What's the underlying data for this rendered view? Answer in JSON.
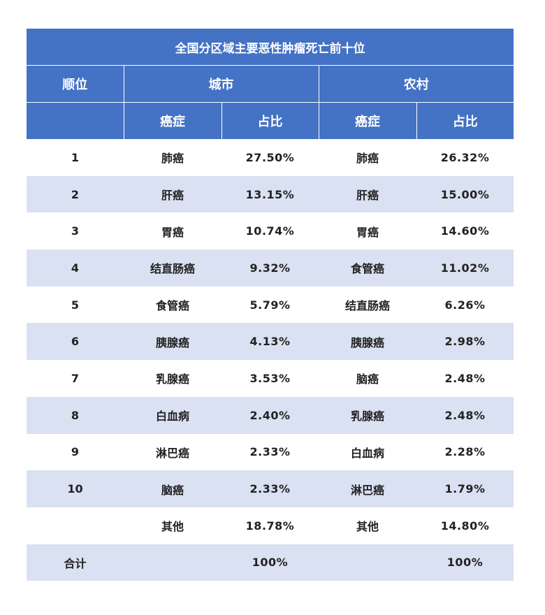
{
  "table": {
    "title": "全国分区域主要恶性肿瘤死亡前十位",
    "header": {
      "rank": "顺位",
      "city": "城市",
      "rural": "农村",
      "cancer": "癌症",
      "share": "占比"
    },
    "rows": [
      {
        "rank": "1",
        "city_cancer": "肺癌",
        "city_pct": "27.50%",
        "rural_cancer": "肺癌",
        "rural_pct": "26.32%"
      },
      {
        "rank": "2",
        "city_cancer": "肝癌",
        "city_pct": "13.15%",
        "rural_cancer": "肝癌",
        "rural_pct": "15.00%"
      },
      {
        "rank": "3",
        "city_cancer": "胃癌",
        "city_pct": "10.74%",
        "rural_cancer": "胃癌",
        "rural_pct": "14.60%"
      },
      {
        "rank": "4",
        "city_cancer": "结直肠癌",
        "city_pct": "9.32%",
        "rural_cancer": "食管癌",
        "rural_pct": "11.02%"
      },
      {
        "rank": "5",
        "city_cancer": "食管癌",
        "city_pct": "5.79%",
        "rural_cancer": "结直肠癌",
        "rural_pct": "6.26%"
      },
      {
        "rank": "6",
        "city_cancer": "胰腺癌",
        "city_pct": "4.13%",
        "rural_cancer": "胰腺癌",
        "rural_pct": "2.98%"
      },
      {
        "rank": "7",
        "city_cancer": "乳腺癌",
        "city_pct": "3.53%",
        "rural_cancer": "脑癌",
        "rural_pct": "2.48%"
      },
      {
        "rank": "8",
        "city_cancer": "白血病",
        "city_pct": "2.40%",
        "rural_cancer": "乳腺癌",
        "rural_pct": "2.48%"
      },
      {
        "rank": "9",
        "city_cancer": "淋巴癌",
        "city_pct": "2.33%",
        "rural_cancer": "白血病",
        "rural_pct": "2.28%"
      },
      {
        "rank": "10",
        "city_cancer": "脑癌",
        "city_pct": "2.33%",
        "rural_cancer": "淋巴癌",
        "rural_pct": "1.79%"
      },
      {
        "rank": "",
        "city_cancer": "其他",
        "city_pct": "18.78%",
        "rural_cancer": "其他",
        "rural_pct": "14.80%"
      },
      {
        "rank": "合计",
        "city_cancer": "",
        "city_pct": "100%",
        "rural_cancer": "",
        "rural_pct": "100%"
      }
    ]
  },
  "colors": {
    "header_bg": "#4472c4",
    "stripe_bg": "#d9e1f2",
    "text": "#222222"
  }
}
